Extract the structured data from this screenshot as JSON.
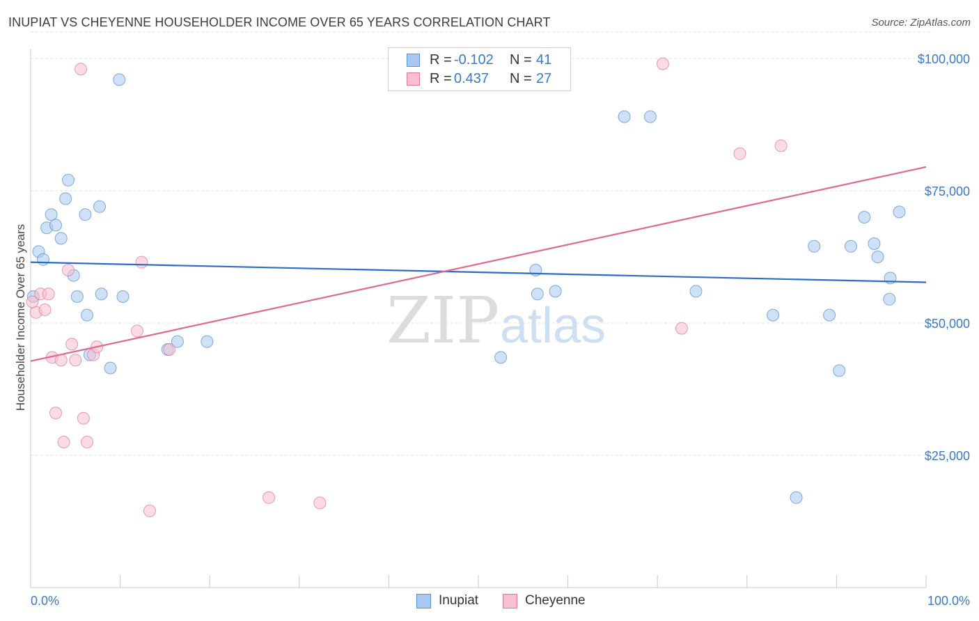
{
  "title": "INUPIAT VS CHEYENNE HOUSEHOLDER INCOME OVER 65 YEARS CORRELATION CHART",
  "source": "Source: ZipAtlas.com",
  "watermark": {
    "zip": "ZIP",
    "atlas": "atlas"
  },
  "legend": {
    "rows": [
      {
        "r_label": "R =",
        "r_value": "-0.102",
        "n_label": "N =",
        "n_value": "41",
        "color": "#a8c8f0",
        "border": "#5a8fd0"
      },
      {
        "r_label": "R =",
        "r_value": "0.437",
        "n_label": "N =",
        "n_value": "27",
        "color": "#f8c0d0",
        "border": "#e07898"
      }
    ]
  },
  "bottom_legend": {
    "inupiat": "Inupiat",
    "cheyenne": "Cheyenne"
  },
  "colors": {
    "inupiat_fill": "#a8c8f0",
    "inupiat_stroke": "#5a8fd0",
    "inupiat_line": "#2a6cc8",
    "cheyenne_fill": "#f8c0d0",
    "cheyenne_stroke": "#e07898",
    "cheyenne_line": "#e06890",
    "tick_text": "#3a78c8",
    "grid": "#e2e2e2"
  },
  "chart_data": {
    "type": "scatter",
    "title": "INUPIAT VS CHEYENNE HOUSEHOLDER INCOME OVER 65 YEARS CORRELATION CHART",
    "xlabel": "",
    "ylabel": "Householder Income Over 65 years",
    "xlim": [
      0,
      100
    ],
    "ylim": [
      0,
      105000
    ],
    "x_tick_labels": [
      "0.0%",
      "100.0%"
    ],
    "y_ticks": [
      25000,
      50000,
      75000,
      100000
    ],
    "y_tick_labels": [
      "$25,000",
      "$50,000",
      "$75,000",
      "$100,000"
    ],
    "grid": true,
    "legend_position": "top-center",
    "series": [
      {
        "name": "Inupiat",
        "trend": {
          "x": [
            0,
            100
          ],
          "y": [
            61500,
            57700
          ]
        },
        "points": [
          {
            "x": 0.3,
            "y": 55000
          },
          {
            "x": 0.9,
            "y": 63500
          },
          {
            "x": 1.4,
            "y": 62000
          },
          {
            "x": 1.8,
            "y": 68000
          },
          {
            "x": 2.3,
            "y": 70500
          },
          {
            "x": 2.8,
            "y": 68500
          },
          {
            "x": 3.4,
            "y": 66000
          },
          {
            "x": 3.9,
            "y": 73500
          },
          {
            "x": 4.2,
            "y": 77000
          },
          {
            "x": 4.8,
            "y": 59000
          },
          {
            "x": 5.2,
            "y": 55000
          },
          {
            "x": 6.1,
            "y": 70500
          },
          {
            "x": 6.3,
            "y": 51500
          },
          {
            "x": 6.6,
            "y": 44000
          },
          {
            "x": 7.7,
            "y": 72000
          },
          {
            "x": 7.9,
            "y": 55500
          },
          {
            "x": 8.9,
            "y": 41500
          },
          {
            "x": 9.9,
            "y": 96000
          },
          {
            "x": 10.3,
            "y": 55000
          },
          {
            "x": 15.3,
            "y": 45000
          },
          {
            "x": 16.4,
            "y": 46500
          },
          {
            "x": 19.7,
            "y": 46500
          },
          {
            "x": 52.5,
            "y": 43500
          },
          {
            "x": 56.4,
            "y": 60000
          },
          {
            "x": 56.6,
            "y": 55500
          },
          {
            "x": 58.6,
            "y": 56000
          },
          {
            "x": 66.3,
            "y": 89000
          },
          {
            "x": 69.2,
            "y": 89000
          },
          {
            "x": 74.3,
            "y": 56000
          },
          {
            "x": 82.9,
            "y": 51500
          },
          {
            "x": 85.5,
            "y": 17000
          },
          {
            "x": 87.5,
            "y": 64500
          },
          {
            "x": 89.2,
            "y": 51500
          },
          {
            "x": 90.3,
            "y": 41000
          },
          {
            "x": 91.6,
            "y": 64500
          },
          {
            "x": 93.1,
            "y": 70000
          },
          {
            "x": 94.2,
            "y": 65000
          },
          {
            "x": 94.6,
            "y": 62500
          },
          {
            "x": 95.9,
            "y": 54500
          },
          {
            "x": 96.0,
            "y": 58500
          },
          {
            "x": 97.0,
            "y": 71000
          }
        ]
      },
      {
        "name": "Cheyenne",
        "trend": {
          "x": [
            0,
            100
          ],
          "y": [
            42800,
            79500
          ]
        },
        "points": [
          {
            "x": 0.6,
            "y": 52000
          },
          {
            "x": 1.1,
            "y": 55500
          },
          {
            "x": 1.6,
            "y": 52500
          },
          {
            "x": 2.0,
            "y": 55500
          },
          {
            "x": 2.4,
            "y": 43500
          },
          {
            "x": 2.8,
            "y": 33000
          },
          {
            "x": 3.4,
            "y": 43000
          },
          {
            "x": 3.7,
            "y": 27500
          },
          {
            "x": 4.2,
            "y": 60000
          },
          {
            "x": 4.6,
            "y": 46000
          },
          {
            "x": 5.0,
            "y": 43000
          },
          {
            "x": 5.6,
            "y": 98000
          },
          {
            "x": 5.9,
            "y": 32000
          },
          {
            "x": 6.3,
            "y": 27500
          },
          {
            "x": 7.0,
            "y": 44000
          },
          {
            "x": 7.4,
            "y": 45500
          },
          {
            "x": 11.9,
            "y": 48500
          },
          {
            "x": 12.4,
            "y": 61500
          },
          {
            "x": 13.3,
            "y": 14500
          },
          {
            "x": 15.5,
            "y": 45000
          },
          {
            "x": 26.6,
            "y": 17000
          },
          {
            "x": 32.3,
            "y": 16000
          },
          {
            "x": 70.6,
            "y": 99000
          },
          {
            "x": 72.7,
            "y": 49000
          },
          {
            "x": 79.2,
            "y": 82000
          },
          {
            "x": 83.8,
            "y": 83500
          },
          {
            "x": 0.2,
            "y": 54000
          }
        ]
      }
    ]
  }
}
